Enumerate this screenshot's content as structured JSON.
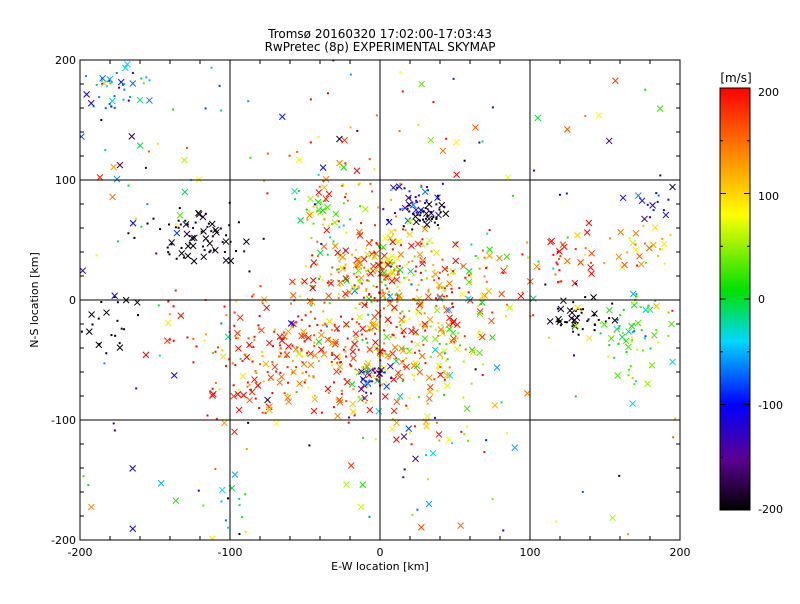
{
  "chart_data": {
    "type": "scatter",
    "title_line1": "Tromsø 20160320 17:02:00-17:03:43",
    "title_line2": "RwPretec (8p) EXPERIMENTAL SKYMAP",
    "xlabel": "E-W location [km]",
    "ylabel": "N-S location [km]",
    "xlim": [
      -200,
      200
    ],
    "ylim": [
      -200,
      200
    ],
    "x_ticks": [
      "-200",
      "-100",
      "0",
      "100",
      "200"
    ],
    "y_ticks": [
      "200",
      "100",
      "0",
      "-100",
      "-200"
    ],
    "grid": true,
    "colorbar": {
      "label": "[m/s]",
      "range": [
        -200,
        200
      ],
      "ticks": [
        "200",
        "100",
        "0",
        "-100",
        "-200"
      ],
      "colormap": "rainbow (black-purple-blue-cyan-green-yellow-orange-red)"
    },
    "markers": [
      "x (cross)",
      "+ (small dot)"
    ],
    "clusters": [
      {
        "cx": -175,
        "cy": 175,
        "sx": 12,
        "sy": 10,
        "n": 40,
        "v": -60,
        "vs": 40
      },
      {
        "cx": -120,
        "cy": 50,
        "sx": 18,
        "sy": 14,
        "n": 70,
        "v": -200,
        "vs": 15
      },
      {
        "cx": -180,
        "cy": -15,
        "sx": 12,
        "sy": 15,
        "n": 25,
        "v": -200,
        "vs": 10
      },
      {
        "cx": -40,
        "cy": 70,
        "sx": 10,
        "sy": 8,
        "n": 35,
        "v": 30,
        "vs": 40
      },
      {
        "cx": -20,
        "cy": 90,
        "sx": 25,
        "sy": 12,
        "n": 25,
        "v": 140,
        "vs": 50
      },
      {
        "cx": 25,
        "cy": 80,
        "sx": 10,
        "sy": 10,
        "n": 45,
        "v": -120,
        "vs": 40
      },
      {
        "cx": 30,
        "cy": 70,
        "sx": 6,
        "sy": 5,
        "n": 30,
        "v": -200,
        "vs": 5
      },
      {
        "cx": 0,
        "cy": 25,
        "sx": 25,
        "sy": 20,
        "n": 260,
        "v": 130,
        "vs": 80
      },
      {
        "cx": -50,
        "cy": -40,
        "sx": 40,
        "sy": 25,
        "n": 260,
        "v": 170,
        "vs": 40
      },
      {
        "cx": 20,
        "cy": -40,
        "sx": 30,
        "sy": 30,
        "n": 230,
        "v": 110,
        "vs": 80
      },
      {
        "cx": -5,
        "cy": -65,
        "sx": 5,
        "sy": 8,
        "n": 30,
        "v": -110,
        "vs": 40
      },
      {
        "cx": 130,
        "cy": -15,
        "sx": 10,
        "sy": 8,
        "n": 45,
        "v": -200,
        "vs": 10
      },
      {
        "cx": 170,
        "cy": -25,
        "sx": 14,
        "sy": 18,
        "n": 70,
        "v": 20,
        "vs": 40
      },
      {
        "cx": 175,
        "cy": 45,
        "sx": 15,
        "sy": 10,
        "n": 30,
        "v": 120,
        "vs": 40
      },
      {
        "cx": 185,
        "cy": 85,
        "sx": 10,
        "sy": 10,
        "n": 15,
        "v": -120,
        "vs": 40
      },
      {
        "cx": 130,
        "cy": 30,
        "sx": 15,
        "sy": 15,
        "n": 30,
        "v": 180,
        "vs": 30
      },
      {
        "cx": 60,
        "cy": 10,
        "sx": 20,
        "sy": 20,
        "n": 60,
        "v": 150,
        "vs": 80
      },
      {
        "cx": -90,
        "cy": -60,
        "sx": 20,
        "sy": 20,
        "n": 40,
        "v": 160,
        "vs": 60
      },
      {
        "cx": -130,
        "cy": 110,
        "sx": 40,
        "sy": 20,
        "n": 15,
        "v": 100,
        "vs": 150
      },
      {
        "cx": 0,
        "cy": 130,
        "sx": 40,
        "sy": 20,
        "n": 20,
        "v": 160,
        "vs": 60
      },
      {
        "cx": -110,
        "cy": -170,
        "sx": 20,
        "sy": 15,
        "n": 12,
        "v": -100,
        "vs": 120
      },
      {
        "cx": 30,
        "cy": -110,
        "sx": 25,
        "sy": 10,
        "n": 25,
        "v": 80,
        "vs": 120
      }
    ]
  }
}
